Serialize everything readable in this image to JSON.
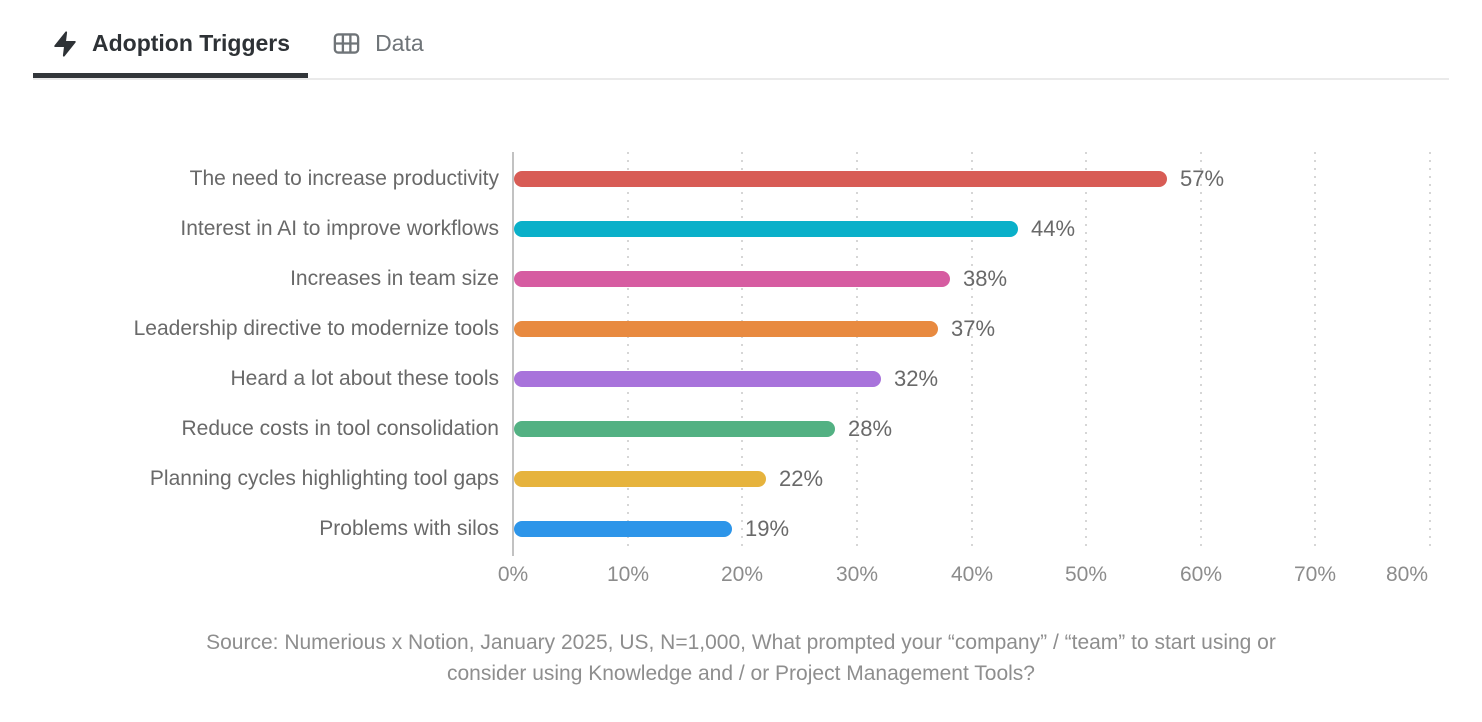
{
  "tabs": [
    {
      "label": "Adoption Triggers",
      "icon": "lightning-icon",
      "active": true
    },
    {
      "label": "Data",
      "icon": "table-icon",
      "active": false
    }
  ],
  "chart_data": {
    "type": "bar",
    "orientation": "horizontal",
    "title": "Adoption Triggers",
    "categories": [
      "The need to increase productivity",
      "Interest in AI to improve workflows",
      "Increases in team size",
      "Leadership directive to modernize tools",
      "Heard a lot about these tools",
      "Reduce costs in tool consolidation",
      "Planning cycles highlighting tool gaps",
      "Problems with silos"
    ],
    "values": [
      57,
      44,
      38,
      37,
      32,
      28,
      22,
      19
    ],
    "value_labels": [
      "57%",
      "44%",
      "38%",
      "37%",
      "32%",
      "28%",
      "22%",
      "19%"
    ],
    "bar_colors": [
      "#D85C55",
      "#0AB0C9",
      "#D65CA1",
      "#E88A40",
      "#A873DB",
      "#53B183",
      "#E6B33D",
      "#2D95E9"
    ],
    "xlabel": "",
    "ylabel": "",
    "xlim": [
      0,
      80
    ],
    "x_tick_labels": [
      "0%",
      "10%",
      "20%",
      "30%",
      "40%",
      "50%",
      "60%",
      "70%",
      "80%"
    ],
    "grid": "vertical-dotted",
    "legend": "none",
    "axis_color": "#C2C2C2",
    "gridline_color": "#D6D6D6"
  },
  "source": {
    "lines": [
      "Source: Numerious x Notion, January 2025, US, N=1,000, What prompted your “company” / “team” to start using or",
      "consider using Knowledge and / or Project Management Tools?"
    ]
  }
}
